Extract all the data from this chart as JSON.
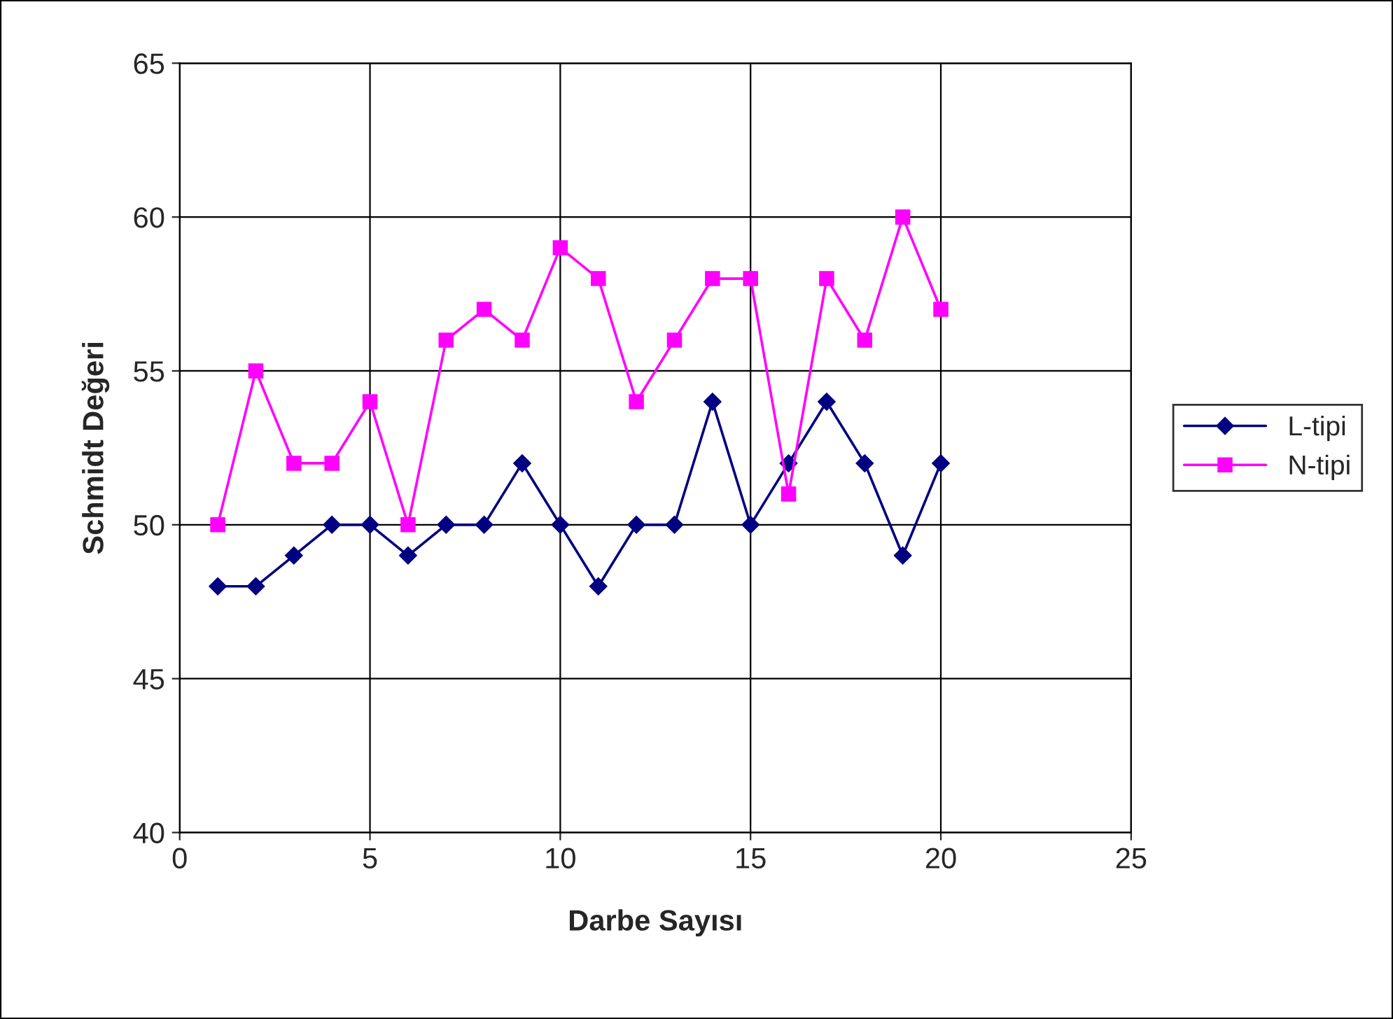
{
  "chart_data": {
    "type": "line",
    "xlabel": "Darbe Sayısı",
    "ylabel": "Schmidt Değeri",
    "x": [
      1,
      2,
      3,
      4,
      5,
      6,
      7,
      8,
      9,
      10,
      11,
      12,
      13,
      14,
      15,
      16,
      17,
      18,
      19,
      20
    ],
    "series": [
      {
        "name": "L-tipi",
        "color": "#000080",
        "marker": "diamond",
        "values": [
          48,
          48,
          49,
          50,
          50,
          49,
          50,
          50,
          52,
          50,
          48,
          50,
          50,
          54,
          50,
          52,
          54,
          52,
          49,
          52
        ]
      },
      {
        "name": "N-tipi",
        "color": "#ff00ff",
        "marker": "square",
        "values": [
          50,
          55,
          52,
          52,
          54,
          50,
          56,
          57,
          56,
          59,
          58,
          54,
          56,
          58,
          58,
          51,
          58,
          56,
          60,
          57
        ]
      }
    ],
    "xlim": [
      0,
      25
    ],
    "xticks": [
      0,
      5,
      10,
      15,
      20,
      25
    ],
    "ylim": [
      40,
      65
    ],
    "yticks": [
      40,
      45,
      50,
      55,
      60,
      65
    ],
    "grid": true,
    "legend": "right",
    "line_style": "solid"
  }
}
